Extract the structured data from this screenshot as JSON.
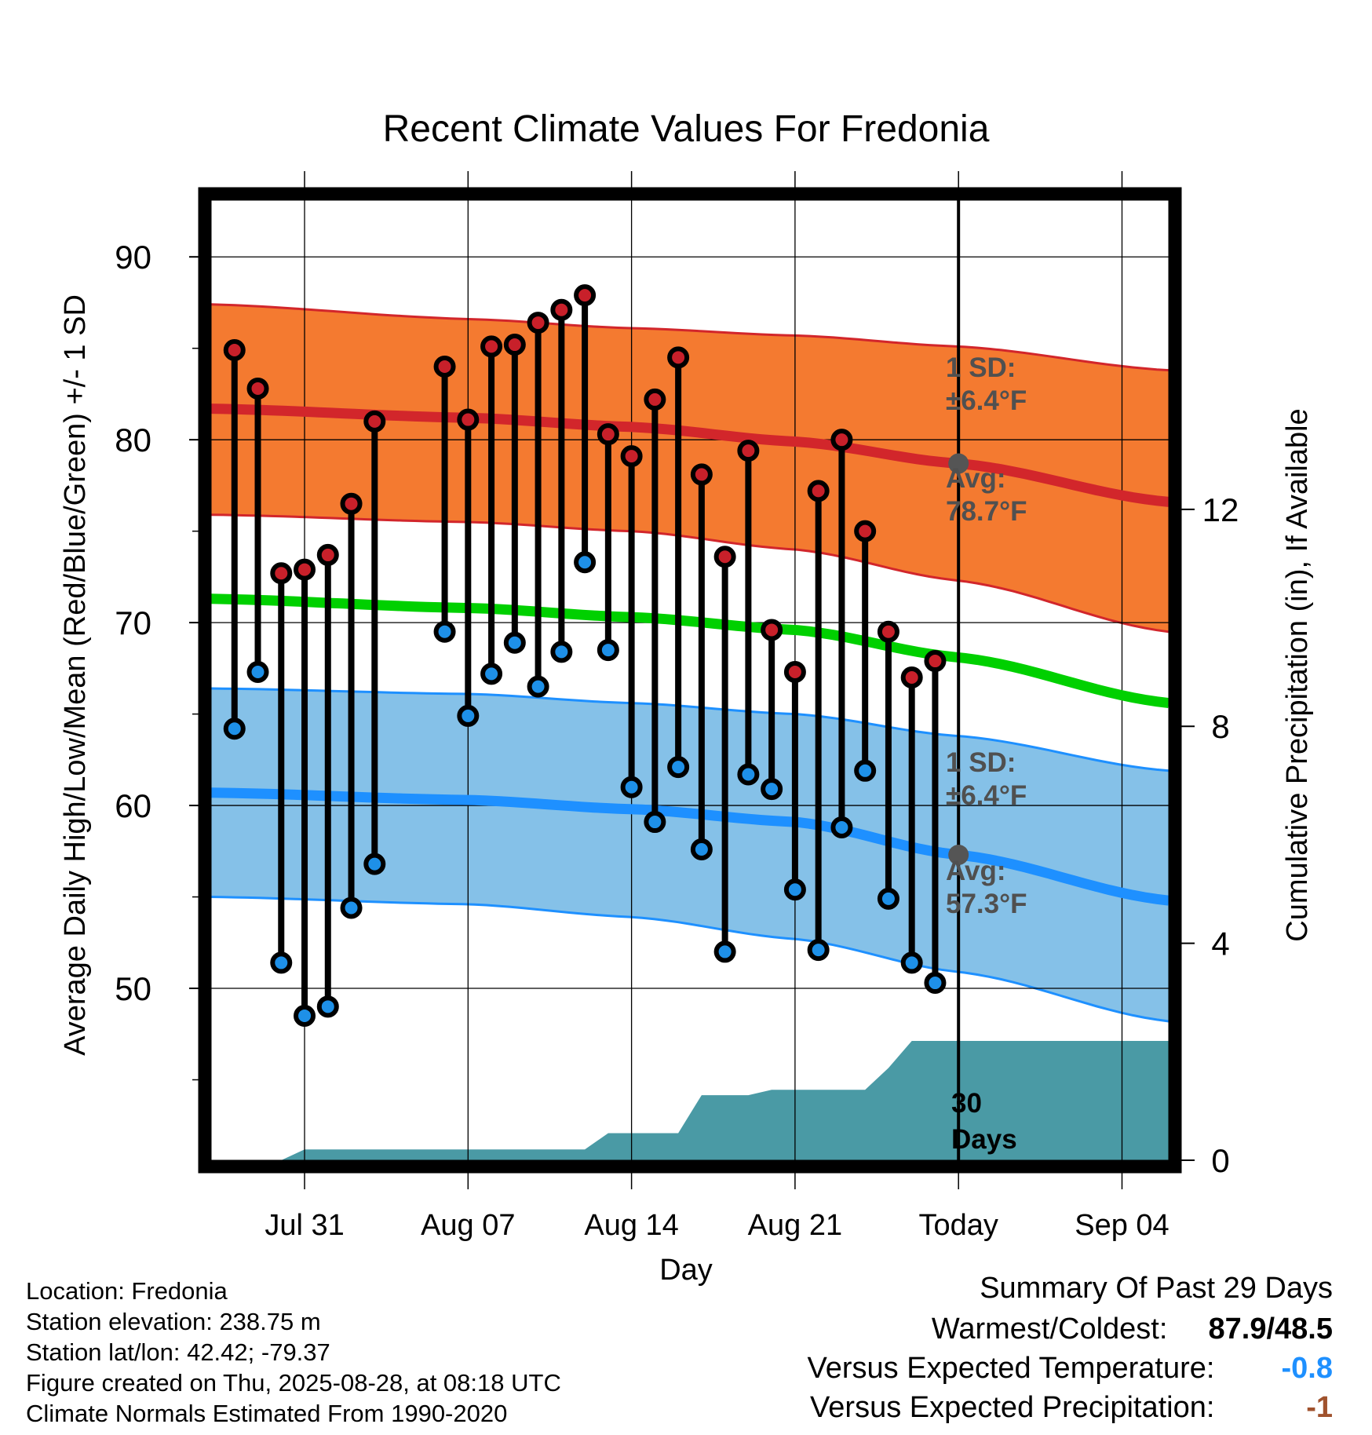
{
  "chart_data": {
    "type": "line",
    "title": "Recent Climate Values For Fredonia",
    "xlabel": "Day",
    "ylabel": "Average Daily High/Low/Mean (Red/Blue/Green) +/- 1 SD",
    "y2label": "Cumulative Precipitation (in), If Available",
    "ylim": [
      40.6,
      93.1
    ],
    "y2lim": [
      0,
      17.7
    ],
    "x_range": [
      "2025-07-27",
      "2025-09-06"
    ],
    "grid": true,
    "x_ticks": [
      {
        "date": "2025-07-31",
        "label": "Jul 31"
      },
      {
        "date": "2025-08-07",
        "label": "Aug 07"
      },
      {
        "date": "2025-08-14",
        "label": "Aug 14"
      },
      {
        "date": "2025-08-21",
        "label": "Aug 21"
      },
      {
        "date": "2025-08-28",
        "label": "Today"
      },
      {
        "date": "2025-09-04",
        "label": "Sep 04"
      }
    ],
    "y_ticks": [
      50,
      60,
      70,
      80,
      90
    ],
    "y2_ticks": [
      0,
      4,
      8,
      12
    ],
    "today": "2025-08-28",
    "normals": {
      "x": [
        "2025-07-27",
        "2025-08-07",
        "2025-08-14",
        "2025-08-21",
        "2025-08-28",
        "2025-09-06"
      ],
      "high": [
        81.7,
        81.2,
        80.7,
        79.9,
        78.7,
        76.6
      ],
      "high_sd_upper": [
        87.4,
        86.6,
        86.1,
        85.7,
        85.1,
        83.8
      ],
      "high_sd_lower": [
        75.9,
        75.5,
        75.0,
        74.0,
        72.3,
        69.5
      ],
      "mean": [
        71.3,
        70.8,
        70.3,
        69.6,
        68.1,
        65.6
      ],
      "low": [
        60.7,
        60.3,
        59.8,
        59.1,
        57.3,
        54.8
      ],
      "low_sd_upper": [
        66.4,
        66.1,
        65.6,
        65.0,
        63.8,
        61.9
      ],
      "low_sd_lower": [
        55.0,
        54.6,
        53.9,
        52.7,
        50.9,
        48.2
      ]
    },
    "series": [
      {
        "name": "High",
        "color": "#c8202a",
        "x": [
          "2025-07-28",
          "2025-07-29",
          "2025-07-30",
          "2025-07-31",
          "2025-08-01",
          "2025-08-02",
          "2025-08-03",
          "2025-08-04",
          "2025-08-05",
          "2025-08-06",
          "2025-08-07",
          "2025-08-08",
          "2025-08-09",
          "2025-08-10",
          "2025-08-11",
          "2025-08-12",
          "2025-08-13",
          "2025-08-14",
          "2025-08-15",
          "2025-08-16",
          "2025-08-17",
          "2025-08-18",
          "2025-08-19",
          "2025-08-20",
          "2025-08-21",
          "2025-08-22",
          "2025-08-23",
          "2025-08-24",
          "2025-08-25",
          "2025-08-26",
          "2025-08-27"
        ],
        "values": [
          84.9,
          82.8,
          72.7,
          72.9,
          73.7,
          76.5,
          81.0,
          null,
          null,
          84.0,
          81.1,
          85.1,
          85.2,
          86.4,
          87.1,
          87.9,
          80.3,
          79.1,
          82.2,
          84.5,
          78.1,
          73.6,
          79.4,
          69.6,
          67.3,
          77.2,
          80.0,
          75.0,
          69.5,
          67.0,
          67.9
        ]
      },
      {
        "name": "Low",
        "color": "#1e90e8",
        "x": [
          "2025-07-28",
          "2025-07-29",
          "2025-07-30",
          "2025-07-31",
          "2025-08-01",
          "2025-08-02",
          "2025-08-03",
          "2025-08-04",
          "2025-08-05",
          "2025-08-06",
          "2025-08-07",
          "2025-08-08",
          "2025-08-09",
          "2025-08-10",
          "2025-08-11",
          "2025-08-12",
          "2025-08-13",
          "2025-08-14",
          "2025-08-15",
          "2025-08-16",
          "2025-08-17",
          "2025-08-18",
          "2025-08-19",
          "2025-08-20",
          "2025-08-21",
          "2025-08-22",
          "2025-08-23",
          "2025-08-24",
          "2025-08-25",
          "2025-08-26",
          "2025-08-27"
        ],
        "values": [
          64.2,
          67.3,
          51.4,
          48.5,
          49.0,
          54.4,
          56.8,
          null,
          null,
          69.5,
          64.9,
          67.2,
          68.9,
          66.5,
          68.4,
          73.3,
          68.5,
          61.0,
          59.1,
          62.1,
          57.6,
          52.0,
          61.7,
          60.9,
          55.4,
          52.1,
          58.8,
          61.9,
          54.9,
          51.4,
          50.3
        ]
      },
      {
        "name": "Cumulative Precipitation",
        "color": "#4a9aa5",
        "x": [
          "2025-07-30",
          "2025-07-31",
          "2025-08-12",
          "2025-08-13",
          "2025-08-16",
          "2025-08-17",
          "2025-08-19",
          "2025-08-20",
          "2025-08-24",
          "2025-08-25",
          "2025-08-26",
          "2025-08-27",
          "2025-09-06"
        ],
        "values": [
          0.0,
          0.2,
          0.2,
          0.5,
          0.5,
          1.2,
          1.2,
          1.3,
          1.3,
          1.7,
          2.2,
          2.2,
          2.2
        ]
      }
    ],
    "annotations": {
      "high_sd_label_1": "1 SD:",
      "high_sd_label_2": "±6.4°F",
      "high_avg_label_1": "Avg:",
      "high_avg_label_2": "78.7°F",
      "low_sd_label_1": "1 SD:",
      "low_sd_label_2": "±6.4°F",
      "low_avg_label_1": "Avg:",
      "low_avg_label_2": "57.3°F",
      "precip_label_1": "30",
      "precip_label_2": "Days"
    },
    "colors": {
      "high_band": "#f47a30",
      "high_line": "#d2262b",
      "mean_line": "#00d000",
      "low_band": "#85c1e8",
      "low_line": "#1e90ff",
      "precip": "#4a9aa5",
      "annotation": "#505050"
    }
  },
  "info": {
    "location": "Location: Fredonia",
    "elevation": "Station elevation: 238.75 m",
    "latlon": "Station lat/lon: 42.42; -79.37",
    "created": "Figure created on Thu, 2025-08-28, at 08:18 UTC",
    "normals": "Climate Normals Estimated From 1990-2020"
  },
  "summary": {
    "title": "Summary Of Past 29 Days",
    "warmest_coldest_label": "Warmest/Coldest:",
    "warmest_coldest_value": "87.9/48.5",
    "temp_label": "Versus Expected Temperature:",
    "temp_value": "-0.8",
    "temp_color": "#1e90ff",
    "precip_label": "Versus Expected Precipitation:",
    "precip_value": "-1",
    "precip_color": "#a0522d"
  }
}
